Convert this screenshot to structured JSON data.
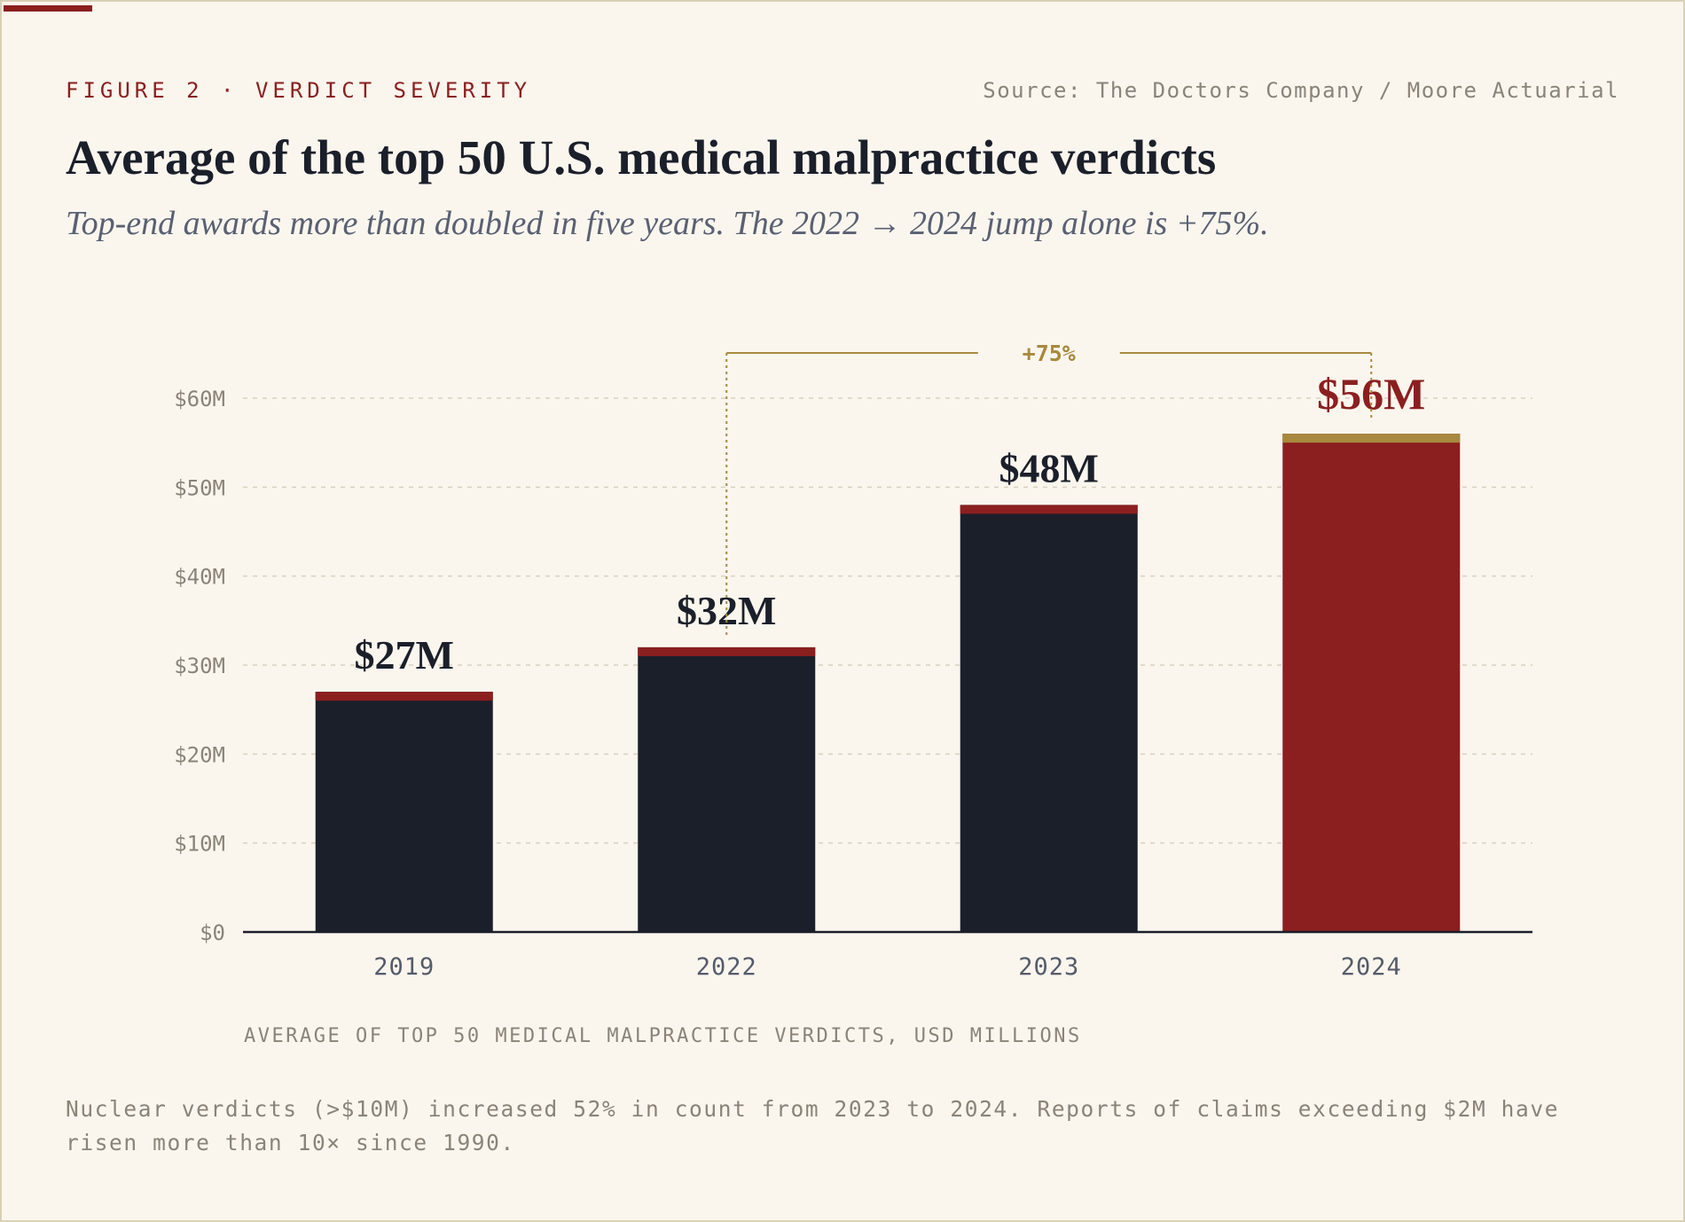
{
  "header": {
    "kicker": "FIGURE 2 · VERDICT SEVERITY",
    "source": "Source: The Doctors Company / Moore Actuarial",
    "title": "Average of the top 50 U.S. medical malpractice verdicts",
    "subtitle": "Top-end awards more than doubled in five years. The 2022 → 2024 jump alone is +75%."
  },
  "colors": {
    "bar": "#1b1f2a",
    "bar_cap": "#8b1f1f",
    "highlight_bar": "#8b1f1f",
    "highlight_cap": "#a8893f",
    "annotation": "#a8893f",
    "grid": "#d8d0bd",
    "background": "#faf6ee"
  },
  "chart_data": {
    "type": "bar",
    "categories": [
      "2019",
      "2022",
      "2023",
      "2024"
    ],
    "values": [
      27,
      32,
      48,
      56
    ],
    "value_labels": [
      "$27M",
      "$32M",
      "$48M",
      "$56M"
    ],
    "highlight_index": 3,
    "ylim": [
      0,
      60
    ],
    "yticks": [
      0,
      10,
      20,
      30,
      40,
      50,
      60
    ],
    "ytick_labels": [
      "$0",
      "$10M",
      "$20M",
      "$30M",
      "$40M",
      "$50M",
      "$60M"
    ],
    "grid": true,
    "xlabel": "AVERAGE OF TOP 50 MEDICAL MALPRACTICE VERDICTS, USD MILLIONS",
    "annotation": {
      "from": "2022",
      "to": "2024",
      "label": "+75%"
    }
  },
  "footnote": "Nuclear verdicts (>$10M) increased 52% in count from 2023 to 2024. Reports of claims exceeding $2M have risen more than 10× since 1990."
}
